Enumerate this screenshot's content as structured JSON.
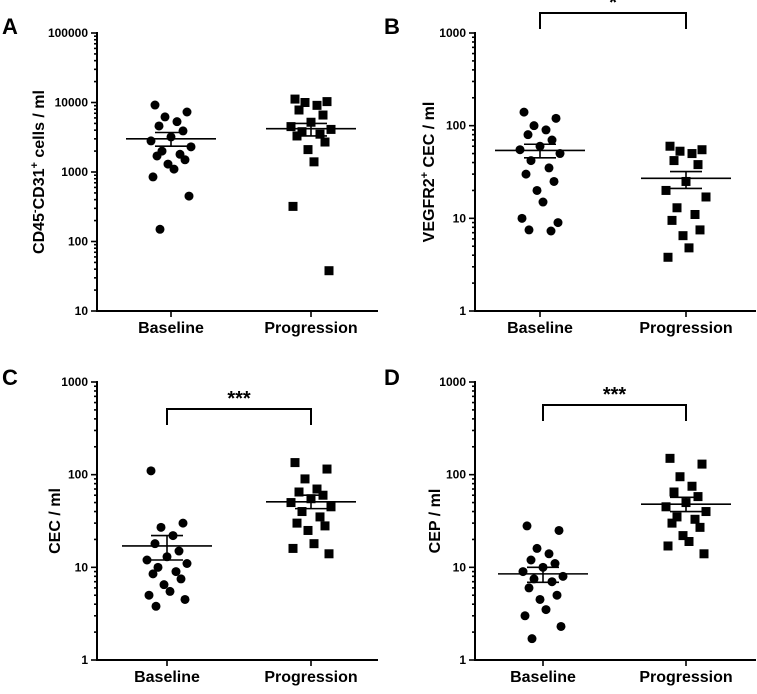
{
  "chart_data": [
    {
      "type": "scatter",
      "panel": "A",
      "ylabel": {
        "pre": "CD45",
        "sup1": "-",
        "mid": "CD31",
        "sup2": "+",
        "post": " cells / ml"
      },
      "yscale": "log",
      "ylim": [
        10,
        100000
      ],
      "yticks": [
        10,
        100,
        1000,
        10000,
        100000
      ],
      "ytick_labels": [
        "10",
        "100",
        "1000",
        "10000",
        "100000"
      ],
      "categories": [
        "Baseline",
        "Progression"
      ],
      "significance": null,
      "series": [
        {
          "name": "Baseline",
          "marker": "circle",
          "values": [
            9200,
            7300,
            6200,
            5300,
            4600,
            3900,
            3200,
            2800,
            2300,
            2000,
            1800,
            1700,
            1500,
            1300,
            1100,
            850,
            450,
            150
          ],
          "mean": 3000,
          "sem_low": 2350,
          "sem_high": 3700
        },
        {
          "name": "Progression",
          "marker": "square",
          "values": [
            11200,
            10300,
            10000,
            9100,
            7800,
            6600,
            5200,
            4500,
            4100,
            3800,
            3500,
            3300,
            2700,
            2100,
            1400,
            320,
            38
          ],
          "mean": 4200,
          "sem_low": 3300,
          "sem_high": 5000
        }
      ]
    },
    {
      "type": "scatter",
      "panel": "B",
      "ylabel": {
        "pre": "VEGFR2",
        "sup1": "+",
        "mid": " CEC / ml",
        "sup2": "",
        "post": ""
      },
      "yscale": "log",
      "ylim": [
        1,
        1000
      ],
      "yticks": [
        1,
        10,
        100,
        1000
      ],
      "ytick_labels": [
        "1",
        "10",
        "100",
        "1000"
      ],
      "categories": [
        "Baseline",
        "Progression"
      ],
      "significance": "*",
      "series": [
        {
          "name": "Baseline",
          "marker": "circle",
          "values": [
            140,
            120,
            100,
            90,
            80,
            70,
            60,
            55,
            50,
            42,
            35,
            30,
            25,
            20,
            15,
            10,
            9,
            7.5,
            7.3
          ],
          "mean": 54,
          "sem_low": 45,
          "sem_high": 63
        },
        {
          "name": "Progression",
          "marker": "square",
          "values": [
            60,
            55,
            53,
            50,
            42,
            38,
            25,
            20,
            17,
            13,
            11,
            9.5,
            7.5,
            6.5,
            4.8,
            3.8
          ],
          "mean": 27,
          "sem_low": 21,
          "sem_high": 32
        }
      ]
    },
    {
      "type": "scatter",
      "panel": "C",
      "ylabel": {
        "pre": "CEC / ml",
        "sup1": "",
        "mid": "",
        "sup2": "",
        "post": ""
      },
      "yscale": "log",
      "ylim": [
        1,
        1000
      ],
      "yticks": [
        1,
        10,
        100,
        1000
      ],
      "ytick_labels": [
        "1",
        "10",
        "100",
        "1000"
      ],
      "categories": [
        "Baseline",
        "Progression"
      ],
      "significance": "***",
      "series": [
        {
          "name": "Baseline",
          "marker": "circle",
          "values": [
            110,
            30,
            27,
            22,
            18,
            15,
            13,
            12,
            11,
            10,
            9,
            8.5,
            7.5,
            6.5,
            5.5,
            5,
            4.5,
            3.8
          ],
          "mean": 17,
          "sem_low": 12,
          "sem_high": 22
        },
        {
          "name": "Progression",
          "marker": "square",
          "values": [
            135,
            115,
            90,
            70,
            65,
            60,
            55,
            50,
            45,
            40,
            35,
            30,
            28,
            25,
            18,
            16,
            14
          ],
          "mean": 51,
          "sem_low": 43,
          "sem_high": 60
        }
      ]
    },
    {
      "type": "scatter",
      "panel": "D",
      "ylabel": {
        "pre": "CEP / ml",
        "sup1": "",
        "mid": "",
        "sup2": "",
        "post": ""
      },
      "yscale": "log",
      "ylim": [
        1,
        1000
      ],
      "yticks": [
        1,
        10,
        100,
        1000
      ],
      "ytick_labels": [
        "1",
        "10",
        "100",
        "1000"
      ],
      "categories": [
        "Baseline",
        "Progression"
      ],
      "significance": "***",
      "series": [
        {
          "name": "Baseline",
          "marker": "circle",
          "values": [
            28,
            25,
            16,
            14,
            12,
            11,
            10,
            9,
            8,
            7.5,
            7,
            6,
            5,
            4.5,
            3.5,
            3,
            2.3,
            1.7
          ],
          "mean": 8.5,
          "sem_low": 6.9,
          "sem_high": 10
        },
        {
          "name": "Progression",
          "marker": "square",
          "values": [
            150,
            130,
            95,
            75,
            65,
            58,
            50,
            45,
            40,
            35,
            33,
            30,
            27,
            22,
            19,
            17,
            14
          ],
          "mean": 48,
          "sem_low": 40,
          "sem_high": 57
        }
      ]
    }
  ]
}
